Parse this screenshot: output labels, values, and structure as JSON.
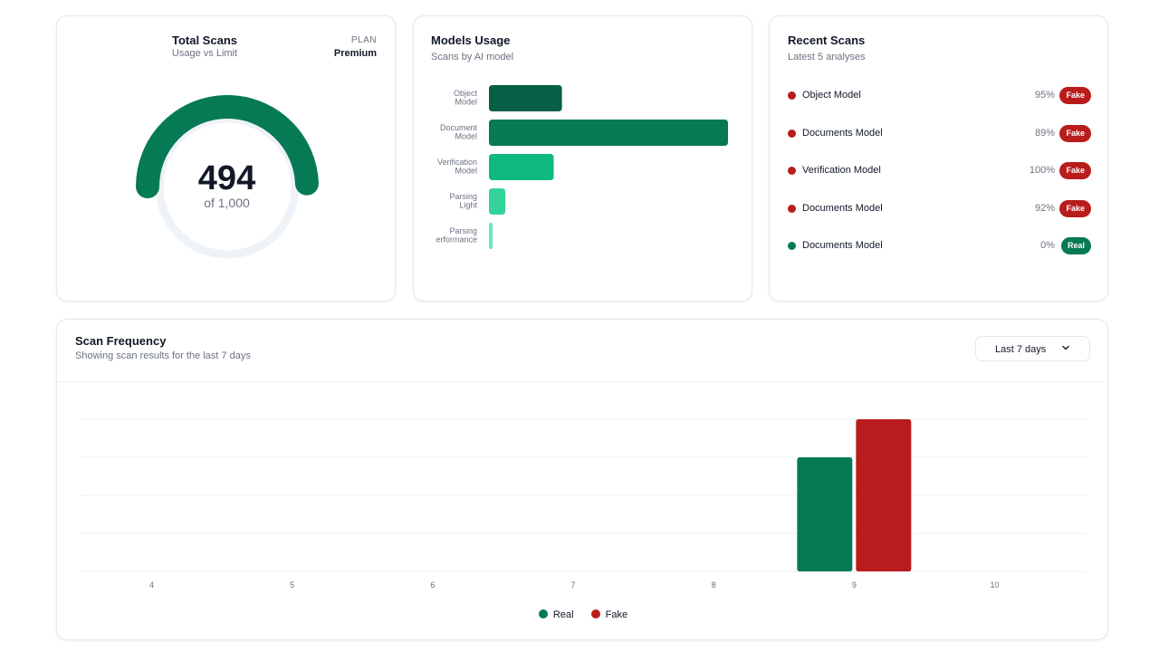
{
  "total_scans": {
    "title": "Total Scans",
    "subtitle": "Usage vs Limit",
    "plan_label": "PLAN",
    "plan_value": "Premium",
    "used": 494,
    "limit": 1000,
    "used_display": "494",
    "of_display": "of 1,000",
    "colors": {
      "arc": "#057a55",
      "track": "#eef3f8"
    }
  },
  "models_usage": {
    "title": "Models Usage",
    "subtitle": "Scans by AI model",
    "chart_data": {
      "type": "bar",
      "orientation": "horizontal",
      "categories": [
        [
          "Object",
          "Model"
        ],
        [
          "Document",
          "Model"
        ],
        [
          "Verification",
          "Model"
        ],
        [
          "Parsing",
          "Light"
        ],
        [
          "Parsing",
          "erformance"
        ]
      ],
      "values": [
        80,
        262,
        71,
        18,
        4
      ],
      "colors": [
        "#065f46",
        "#057a55",
        "#10b981",
        "#34d399",
        "#6ee7b7"
      ],
      "xlim": [
        0,
        262
      ]
    }
  },
  "recent_scans": {
    "title": "Recent Scans",
    "subtitle": "Latest 5 analyses",
    "items": [
      {
        "name": "Object Model",
        "pct": "95%",
        "badge": "Fake",
        "status": "fake"
      },
      {
        "name": "Documents Model",
        "pct": "89%",
        "badge": "Fake",
        "status": "fake"
      },
      {
        "name": "Verification Model",
        "pct": "100%",
        "badge": "Fake",
        "status": "fake"
      },
      {
        "name": "Documents Model",
        "pct": "92%",
        "badge": "Fake",
        "status": "fake"
      },
      {
        "name": "Documents Model",
        "pct": "0%",
        "badge": "Real",
        "status": "real"
      }
    ],
    "colors": {
      "fake": "#b91c1c",
      "real": "#057a55"
    }
  },
  "scan_frequency": {
    "title": "Scan Frequency",
    "subtitle": "Showing scan results for the last 7 days",
    "range_select": {
      "value": "Last 7 days",
      "icon": "chevron-down-icon"
    },
    "chart_data": {
      "type": "bar",
      "categories": [
        "4",
        "5",
        "6",
        "7",
        "8",
        "9",
        "10"
      ],
      "series": [
        {
          "name": "Real",
          "color": "#057a55",
          "values": [
            0,
            0,
            0,
            0,
            0,
            3,
            0
          ]
        },
        {
          "name": "Fake",
          "color": "#b91c1c",
          "values": [
            0,
            0,
            0,
            0,
            0,
            4,
            0
          ]
        }
      ],
      "ylim": [
        0,
        4
      ],
      "grid": true,
      "legend": "bottom-center"
    }
  }
}
